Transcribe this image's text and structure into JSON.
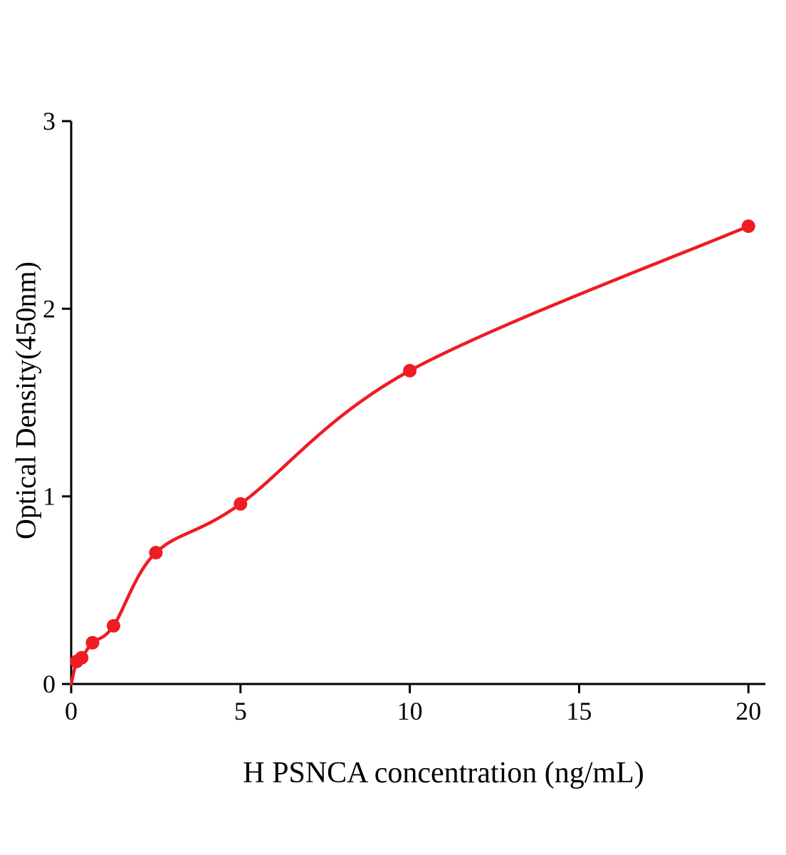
{
  "chart_data": {
    "type": "scatter",
    "title": "",
    "xlabel": "H PSNCA concentration (ng/mL)",
    "ylabel": "Optical Density(450nm)",
    "x": [
      0.16,
      0.31,
      0.63,
      1.25,
      2.5,
      5,
      10,
      20
    ],
    "y": [
      0.12,
      0.14,
      0.22,
      0.31,
      0.7,
      0.96,
      1.67,
      2.44
    ],
    "xlim": [
      0,
      20.5
    ],
    "ylim": [
      0,
      3
    ],
    "xticks": [
      0,
      5,
      10,
      15,
      20
    ],
    "yticks": [
      0,
      1,
      2,
      3
    ],
    "curve": "smooth-through-origin",
    "grid": false,
    "legend": "none",
    "point_color": "#ee1c23",
    "curve_color": "#ee1c23",
    "axis_color": "#000000"
  }
}
